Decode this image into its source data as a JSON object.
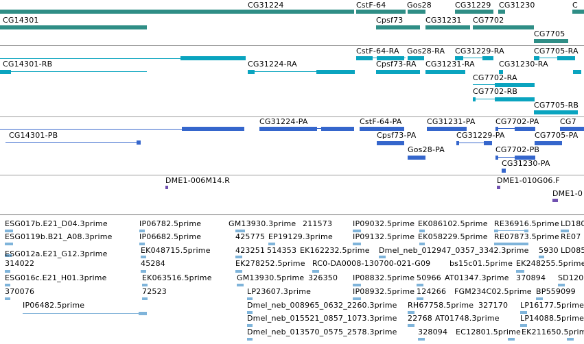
{
  "colors": {
    "gene": "#2f8e86",
    "transcript": "#0aa4bf",
    "protein": "#3566cc",
    "cdna": "#7050b0",
    "est": "#7fb4da",
    "est_line": "#8bb8dc",
    "separator": "#9a9a9a"
  },
  "tracks": {
    "genes": {
      "labels": [
        "CG31224",
        "CstF-64",
        "Gos28",
        "CG31229",
        "CG31230",
        "C",
        "CG14301",
        "Cpsf73",
        "CG31231",
        "CG7702",
        "CG7705"
      ]
    },
    "transcripts": {
      "labels": [
        "CstF-64-RA",
        "Gos28-RA",
        "CG31229-RA",
        "CG7705-RA",
        "CG14301-RB",
        "CG31224-RA",
        "Cpsf73-RA",
        "CG31231-RA",
        "CG31230-RA",
        "CG7702-RA",
        "CG7702-RB",
        "CG7705-RB"
      ]
    },
    "proteins": {
      "labels": [
        "CG31224-PA",
        "CstF-64-PA",
        "CG31231-PA",
        "CG7702-PA",
        "CG7",
        "CG14301-PB",
        "Cpsf73-PA",
        "CG31229-PA",
        "CG7705-PA",
        "Gos28-PA",
        "CG7702-PB",
        "CG31230-PA"
      ]
    },
    "cdna": {
      "labels": [
        "DME1-006M14.R",
        "DME1-010G06.F",
        "DME1-0"
      ]
    },
    "ests": {
      "labels": [
        "ESG017b.E21_D04.3prime",
        "IP06782.5prime",
        "GM13930.3prime",
        "211573",
        "IP09032.5prime",
        "EK086102.5prime",
        "RE36916.5prime",
        "LD180",
        "ESG0119b.B21_A08.3prime",
        "IP06682.5prime",
        "425775",
        "EP19129.3prime",
        "IP09132.5prime",
        "EK058229.5prime",
        "RE07873.5prime",
        "RE07",
        "EK048715.5prime",
        "423251",
        "514353",
        "EK162232.5prime",
        "Dmel_neb_012947_0357_3342.3prime",
        "5930",
        "LD085",
        "ESG012a.E21_G12.3prime",
        "314022",
        "45284",
        "EK278252.5prime",
        "RC0-DA0008-130700-021-G09",
        "bs15c01.5prime",
        "EK248255.5prime",
        "ESG016c.E21_H01.3prime",
        "EK063516.5prime",
        "GM13930.5prime",
        "326350",
        "IP08832.5prime",
        "50966",
        "AT01347.3prime",
        "370894",
        "SD120",
        "370076",
        "72523",
        "LP23607.3prime",
        "IP08932.5prime",
        "124266",
        "FGM234C02.5prime",
        "BP559099",
        "IP06482.5prime",
        "Dmel_neb_008965_0632_2260.3prime",
        "RH67758.5prime",
        "327170",
        "LP16177.5prime",
        "Dmel_neb_015521_0857_1073.3prime",
        "22768",
        "AT01748.3prime",
        "LP14088.5prime",
        "Dmel_neb_013570_0575_2578.3prime",
        "328094",
        "EC12801.5prime",
        "EK211650.5prime"
      ]
    }
  }
}
